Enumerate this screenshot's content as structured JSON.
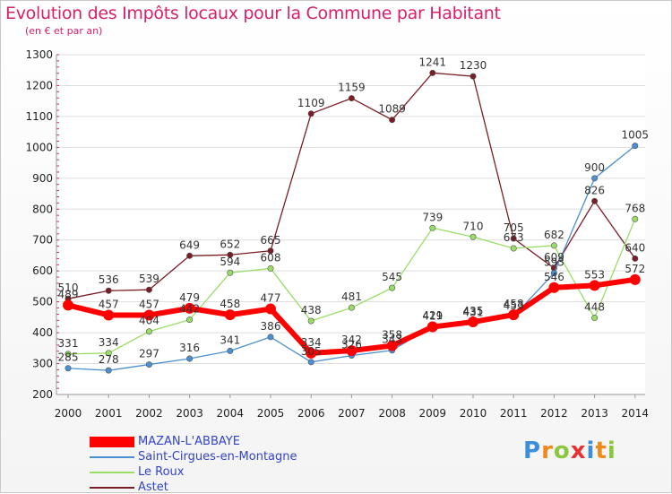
{
  "chart_data": {
    "type": "line",
    "title": "Evolution des Impôts locaux pour la Commune par Habitant",
    "subtitle": "(en € et par an)",
    "xlabel": "",
    "ylabel": "",
    "ylim": [
      200,
      1300
    ],
    "yticks": [
      200,
      300,
      400,
      500,
      600,
      700,
      800,
      900,
      1000,
      1100,
      1200,
      1300
    ],
    "categories": [
      "2000",
      "2001",
      "2002",
      "2003",
      "2004",
      "2005",
      "2006",
      "2007",
      "2008",
      "2009",
      "2010",
      "2011",
      "2012",
      "2013",
      "2014"
    ],
    "series": [
      {
        "name": "Astet",
        "color": "#7a1d25",
        "values": [
          510,
          536,
          539,
          649,
          652,
          665,
          1109,
          1159,
          1089,
          1241,
          1230,
          705,
          609,
          826,
          640
        ]
      },
      {
        "name": "Le Roux",
        "color": "#99dd66",
        "values": [
          331,
          334,
          404,
          442,
          594,
          608,
          438,
          481,
          545,
          739,
          710,
          673,
          682,
          448,
          768
        ]
      },
      {
        "name": "Saint-Cirgues-en-Montagne",
        "color": "#4a8fd0",
        "values": [
          285,
          278,
          297,
          316,
          341,
          386,
          305,
          326,
          343,
          421,
          431,
          453,
          593,
          900,
          1005
        ]
      },
      {
        "name": "MAZAN-L'ABBAYE",
        "color": "#ff0000",
        "values": [
          489,
          457,
          457,
          479,
          458,
          477,
          334,
          342,
          358,
          419,
          435,
          458,
          546,
          553,
          572
        ]
      }
    ]
  },
  "legend": {
    "items": [
      {
        "label": "MAZAN-L'ABBAYE",
        "color": "#ff0000"
      },
      {
        "label": "Saint-Cirgues-en-Montagne",
        "color": "#4a8fd0"
      },
      {
        "label": "Le Roux",
        "color": "#99dd66"
      },
      {
        "label": "Astet",
        "color": "#7a1d25"
      }
    ]
  },
  "brand": {
    "text": "Proxiti"
  }
}
